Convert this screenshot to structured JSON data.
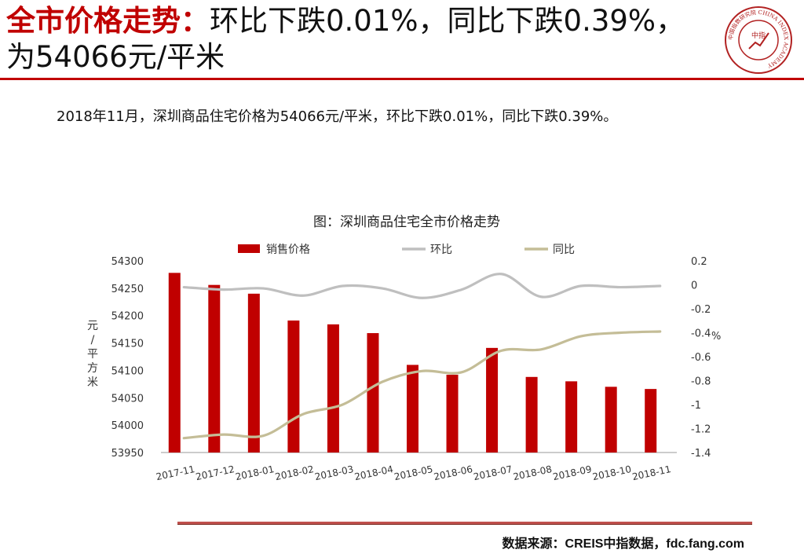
{
  "header": {
    "title_lead": "全市价格走势：",
    "title_rest": "环比下跌0.01%，同比下跌0.39%，为54066元/平米"
  },
  "logo": {
    "ring_text": "中国指数研究院 CHINA INDEX ACADEMY",
    "center_text": "中指",
    "color": "#b22222"
  },
  "summary": "2018年11月，深圳商品住宅价格为54066元/平米，环比下跌0.01%，同比下跌0.39%。",
  "chart_data": {
    "type": "bar",
    "title": "图：深圳商品住宅全市价格走势",
    "ylabel": "元/平方米",
    "y2label": "%",
    "legend_position": "top",
    "categories": [
      "2017-11",
      "2017-12",
      "2018-01",
      "2018-02",
      "2018-03",
      "2018-04",
      "2018-05",
      "2018-06",
      "2018-07",
      "2018-08",
      "2018-09",
      "2018-10",
      "2018-11"
    ],
    "ylim": [
      53950,
      54300
    ],
    "yticks": [
      53950,
      54000,
      54050,
      54100,
      54150,
      54200,
      54250,
      54300
    ],
    "y2lim": [
      -1.4,
      0.2
    ],
    "y2ticks": [
      0.2,
      0,
      -0.2,
      -0.4,
      -0.6,
      -0.8,
      -1,
      -1.2,
      -1.4
    ],
    "grid": false,
    "series": [
      {
        "name": "销售价格",
        "type": "bar",
        "axis": "left",
        "color": "#c00000",
        "values": [
          54278,
          54256,
          54240,
          54191,
          54184,
          54168,
          54110,
          54092,
          54141,
          54088,
          54080,
          54070,
          54066
        ]
      },
      {
        "name": "环比",
        "type": "line",
        "axis": "right",
        "color": "#bfbfbf",
        "values": [
          -0.02,
          -0.04,
          -0.03,
          -0.09,
          -0.01,
          -0.03,
          -0.11,
          -0.04,
          0.09,
          -0.1,
          -0.01,
          -0.02,
          -0.01
        ]
      },
      {
        "name": "同比",
        "type": "line",
        "axis": "right",
        "color": "#c4bd97",
        "values": [
          -1.28,
          -1.25,
          -1.26,
          -1.08,
          -1.0,
          -0.81,
          -0.72,
          -0.73,
          -0.55,
          -0.54,
          -0.43,
          -0.4,
          -0.39
        ]
      }
    ]
  },
  "footer": {
    "source": "数据来源：CREIS中指数据，fdc.fang.com"
  }
}
